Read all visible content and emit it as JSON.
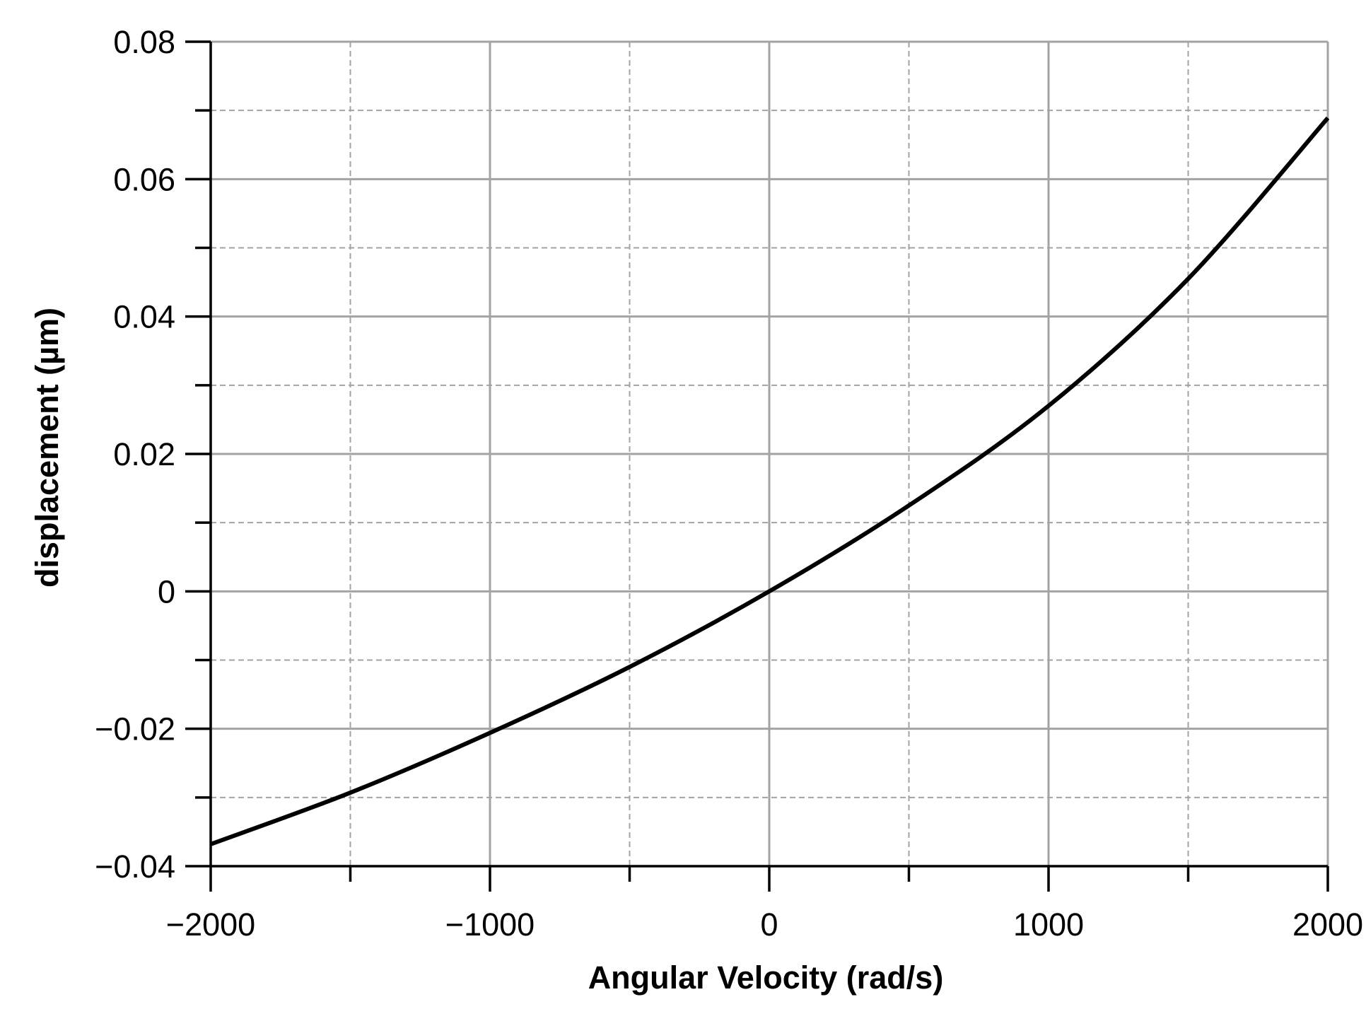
{
  "chart_data": {
    "type": "line",
    "title": "",
    "xlabel": "Angular Velocity (rad/s)",
    "ylabel": "displacement (µm)",
    "xlim": [
      -2000,
      2000
    ],
    "ylim": [
      -0.04,
      0.08
    ],
    "x_major_ticks": [
      -2000,
      -1000,
      0,
      1000,
      2000
    ],
    "x_minor_ticks": [
      -1500,
      -500,
      500,
      1500
    ],
    "x_tick_labels": [
      "−2000",
      "−1000",
      "0",
      "1000",
      "2000"
    ],
    "y_major_ticks": [
      -0.04,
      -0.02,
      0,
      0.02,
      0.04,
      0.06,
      0.08
    ],
    "y_minor_ticks": [
      -0.03,
      -0.01,
      0.01,
      0.03,
      0.05,
      0.07
    ],
    "y_tick_labels": [
      "−0.04",
      "−0.02",
      "0",
      "0.02",
      "0.04",
      "0.06",
      "0.08"
    ],
    "grid": true,
    "line_color": "#000000",
    "grid_color": "#a3a3a3",
    "series": [
      {
        "x": [
          -2000,
          -1500,
          -1000,
          -500,
          0,
          500,
          1000,
          1500,
          2000
        ],
        "y": [
          -0.0368,
          -0.0293,
          -0.0206,
          -0.011,
          0.0,
          0.0125,
          0.027,
          0.0455,
          0.0689
        ]
      }
    ]
  }
}
